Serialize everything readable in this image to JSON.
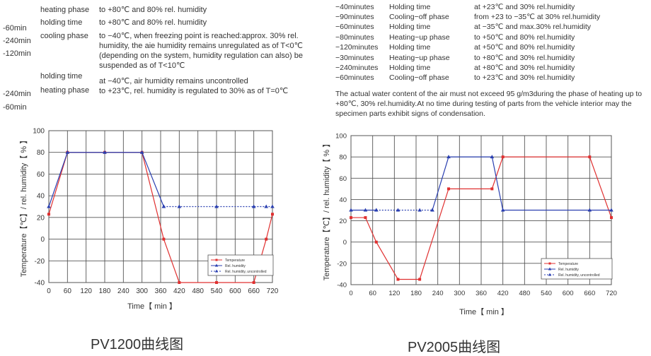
{
  "left_text": {
    "side_times": [
      "-60min",
      "-240min",
      "-120min",
      "-240min",
      "-60min"
    ],
    "rows": [
      {
        "phase": "heating phase",
        "desc": "to +80℃ and 80% rel. humidity"
      },
      {
        "phase": "holding time",
        "desc": "to +80℃ and 80% rel. humidity"
      },
      {
        "phase": "cooling phase",
        "desc": "to −40℃, when freezing point is reached:approx. 30% rel. humidity, the aie humidity remains unregulated as of T<0℃ (depending on the system, humidity regulation can also) be suspended as of T<10℃"
      },
      {
        "phase": "holding time",
        "desc": "at −40℃, air humidity remains uncontrolled"
      },
      {
        "phase": "heating phase",
        "desc": "to +23℃, rel. humidity is regulated to 30% as of T=0℃"
      }
    ]
  },
  "right_text": {
    "rows": [
      {
        "time": "−40minutes",
        "phase": "Holding time",
        "desc": "at +23℃ and 30% rel.humidity"
      },
      {
        "time": "−90minutes",
        "phase": "Cooling−off phase",
        "desc": "from +23 to −35℃ at 30% rel.humidity"
      },
      {
        "time": "−60minutes",
        "phase": "Holding time",
        "desc": "at −35℃ and max.30% rel.humidity"
      },
      {
        "time": "−80minutes",
        "phase": "Heating−up phase",
        "desc": "to +50℃ and 80% rel.humidity"
      },
      {
        "time": "−120minutes",
        "phase": "Holding time",
        "desc": "at +50℃ and 80% rel.humidity"
      },
      {
        "time": "−30minutes",
        "phase": "Heating−up phase",
        "desc": "to +80℃ and 30% rel.humidity"
      },
      {
        "time": "−240minutes",
        "phase": "Holding time",
        "desc": "at +80℃ and 30% rel.humidity"
      },
      {
        "time": "−60minutes",
        "phase": "Cooling−off phase",
        "desc": "to +23℃ and 30% rel.humidity"
      }
    ],
    "note": "The actual water content of the air must not exceed 95 g/m3during the phase of heating up to +80℃, 30% rel.humidity.At no time during testing of parts from the vehicle interior may the specimen parts exhibit signs of condensation."
  },
  "chart_data": [
    {
      "type": "line",
      "caption": "PV1200曲线图",
      "xlabel": "Time【 min 】",
      "ylabel": "Temperature【℃】/ rel. humidity【 % 】",
      "xlim": [
        0,
        720
      ],
      "ylim": [
        -40,
        100
      ],
      "xticks": [
        0,
        60,
        120,
        180,
        240,
        300,
        360,
        420,
        480,
        540,
        600,
        660,
        720
      ],
      "yticks": [
        -40,
        -20,
        0,
        20,
        40,
        60,
        80,
        100
      ],
      "grid": true,
      "legend_position": "bottom-right",
      "series": [
        {
          "name": "Temperature",
          "color": "#e03030",
          "marker": "square",
          "dash": "solid",
          "x": [
            0,
            60,
            180,
            300,
            370,
            420,
            540,
            660,
            700,
            720
          ],
          "y": [
            23,
            80,
            80,
            80,
            0,
            -40,
            -40,
            -40,
            0,
            23
          ]
        },
        {
          "name": "Rel. humidity",
          "color": "#2a3fb0",
          "marker": "triangle",
          "dash": "solid",
          "x": [
            0,
            60,
            180,
            300,
            370
          ],
          "y": [
            30,
            80,
            80,
            80,
            30
          ]
        },
        {
          "name": "Rel. humidity, uncontrolled",
          "color": "#2a3fb0",
          "marker": "triangle",
          "dash": "dotted",
          "x": [
            370,
            420,
            540,
            660,
            700,
            720
          ],
          "y": [
            30,
            30,
            30,
            30,
            30,
            30
          ]
        }
      ]
    },
    {
      "type": "line",
      "caption": "PV2005曲线图",
      "xlabel": "Time【 min 】",
      "ylabel": "Temperature【℃】/ rel. humidity【 % 】",
      "xlim": [
        0,
        720
      ],
      "ylim": [
        -40,
        100
      ],
      "xticks": [
        0,
        60,
        120,
        180,
        240,
        300,
        360,
        420,
        480,
        540,
        600,
        660,
        720
      ],
      "yticks": [
        -40,
        -20,
        0,
        20,
        40,
        60,
        80,
        100
      ],
      "grid": true,
      "legend_position": "bottom-right",
      "series": [
        {
          "name": "Temperature",
          "color": "#e03030",
          "marker": "square",
          "dash": "solid",
          "x": [
            0,
            40,
            70,
            130,
            190,
            270,
            390,
            420,
            660,
            720
          ],
          "y": [
            23,
            23,
            0,
            -35,
            -35,
            50,
            50,
            80,
            80,
            23
          ]
        },
        {
          "name": "Rel. humidity",
          "color": "#2a3fb0",
          "marker": "triangle",
          "dash": "solid",
          "x": [
            0,
            40,
            70
          ],
          "y": [
            30,
            30,
            30
          ]
        },
        {
          "name": "Rel. humidity, uncontrolled",
          "color": "#2a3fb0",
          "marker": "triangle",
          "dash": "dotted",
          "x": [
            70,
            130,
            190,
            225
          ],
          "y": [
            30,
            30,
            30,
            30
          ]
        },
        {
          "name": "Rel. humidity",
          "color": "#2a3fb0",
          "marker": "triangle",
          "dash": "solid",
          "hide_legend": true,
          "x": [
            225,
            270,
            390,
            420,
            660,
            720
          ],
          "y": [
            30,
            80,
            80,
            30,
            30,
            30
          ]
        }
      ]
    }
  ]
}
